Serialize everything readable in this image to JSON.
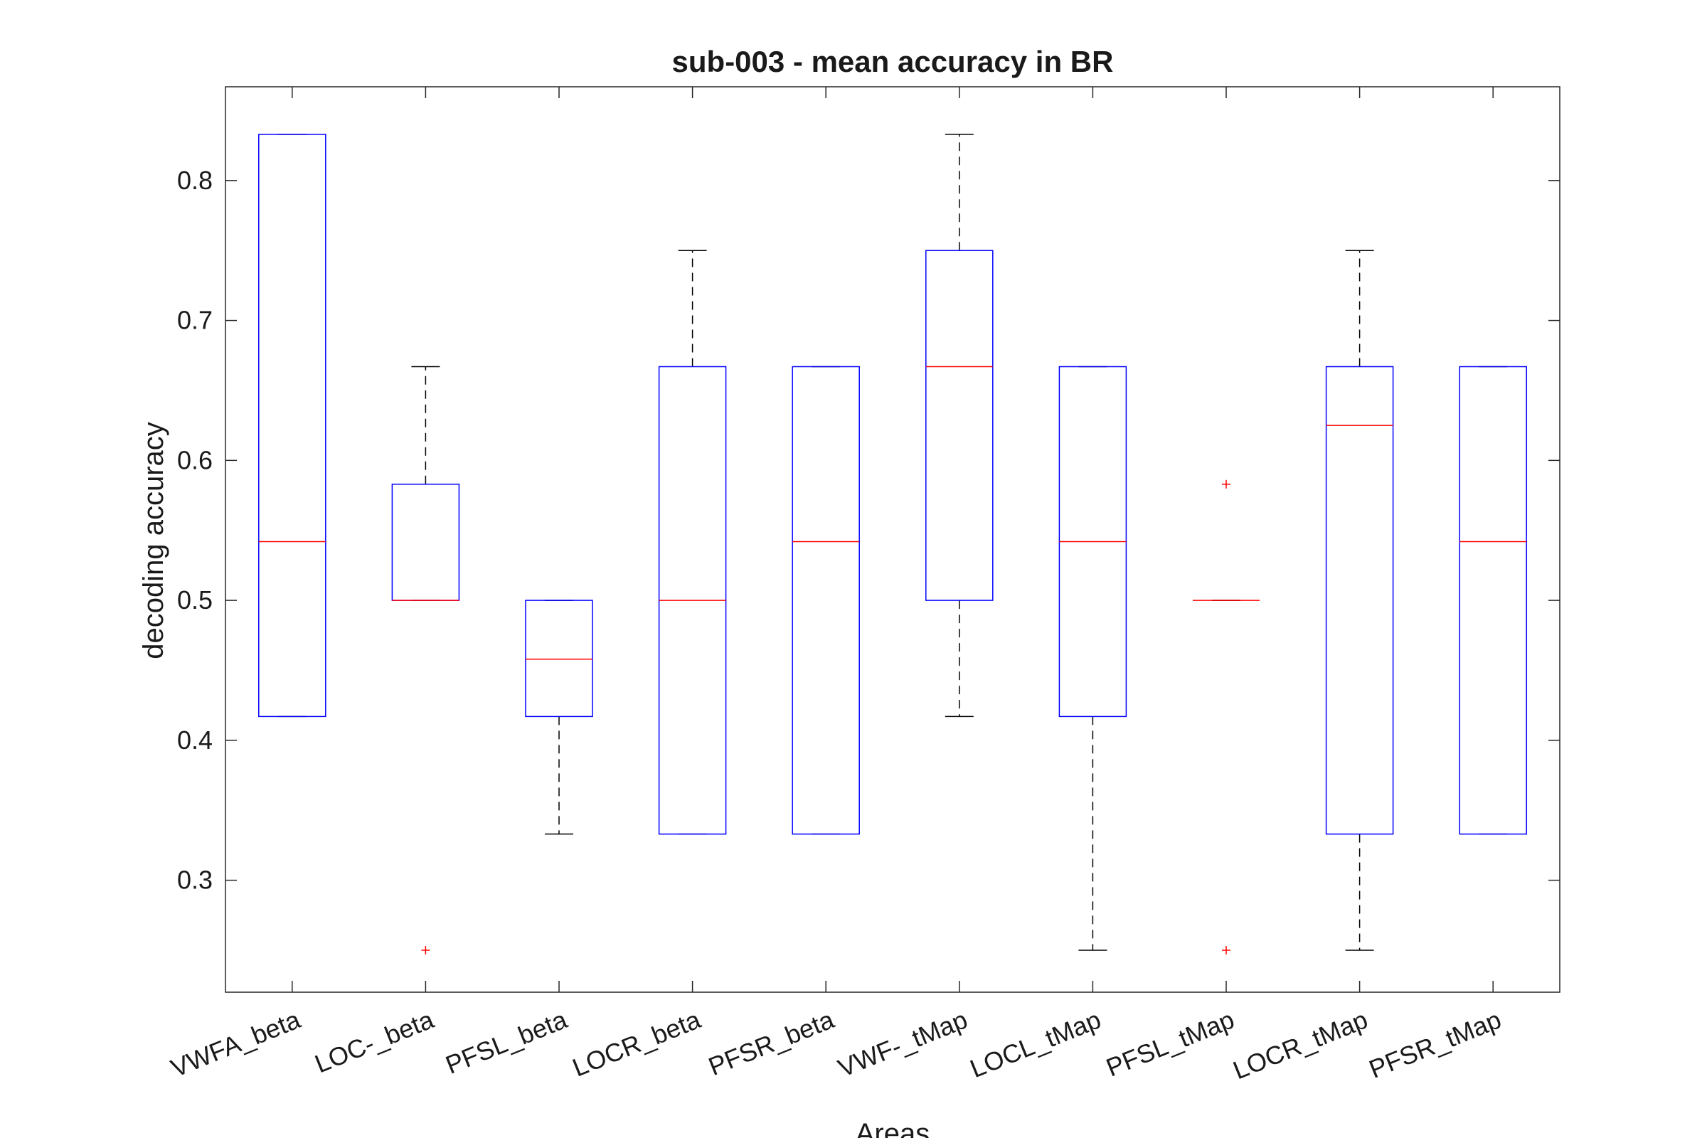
{
  "chart_data": {
    "type": "box",
    "title": "sub-003 - mean accuracy in BR",
    "xlabel": "Areas",
    "ylabel": "decoding accuracy",
    "ylim": [
      0.22,
      0.867
    ],
    "yticks": [
      0.3,
      0.4,
      0.5,
      0.6,
      0.7,
      0.8
    ],
    "grid": false,
    "colors": {
      "box": "#0000ff",
      "median": "#ff0000",
      "whisker": "#000000",
      "outlier": "#ff0000",
      "axes": "#262626"
    },
    "categories": [
      "VWFA_beta",
      "LOC-_beta",
      "PFSL_beta",
      "LOCR_beta",
      "PFSR_beta",
      "VWF-_tMap",
      "LOCL_tMap",
      "PFSL_tMap",
      "LOCR_tMap",
      "PFSR_tMap"
    ],
    "boxes": [
      {
        "q1": 0.417,
        "median": 0.542,
        "q3": 0.833,
        "whisker_low": 0.417,
        "whisker_high": 0.833,
        "outliers": []
      },
      {
        "q1": 0.5,
        "median": 0.5,
        "q3": 0.583,
        "whisker_low": 0.5,
        "whisker_high": 0.667,
        "outliers": [
          0.25
        ]
      },
      {
        "q1": 0.417,
        "median": 0.458,
        "q3": 0.5,
        "whisker_low": 0.333,
        "whisker_high": 0.5,
        "outliers": []
      },
      {
        "q1": 0.333,
        "median": 0.5,
        "q3": 0.667,
        "whisker_low": 0.333,
        "whisker_high": 0.75,
        "outliers": []
      },
      {
        "q1": 0.333,
        "median": 0.542,
        "q3": 0.667,
        "whisker_low": 0.333,
        "whisker_high": 0.667,
        "outliers": []
      },
      {
        "q1": 0.5,
        "median": 0.667,
        "q3": 0.75,
        "whisker_low": 0.417,
        "whisker_high": 0.833,
        "outliers": []
      },
      {
        "q1": 0.417,
        "median": 0.542,
        "q3": 0.667,
        "whisker_low": 0.25,
        "whisker_high": 0.667,
        "outliers": []
      },
      {
        "q1": 0.5,
        "median": 0.5,
        "q3": 0.5,
        "whisker_low": 0.5,
        "whisker_high": 0.5,
        "outliers": [
          0.583,
          0.25
        ]
      },
      {
        "q1": 0.333,
        "median": 0.625,
        "q3": 0.667,
        "whisker_low": 0.25,
        "whisker_high": 0.75,
        "outliers": []
      },
      {
        "q1": 0.333,
        "median": 0.542,
        "q3": 0.667,
        "whisker_low": 0.333,
        "whisker_high": 0.667,
        "outliers": []
      }
    ]
  }
}
